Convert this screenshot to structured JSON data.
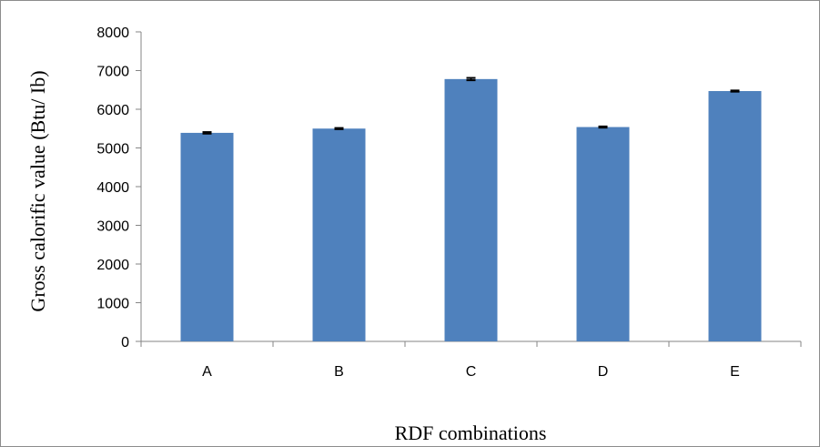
{
  "chart_data": {
    "type": "bar",
    "categories": [
      "A",
      "B",
      "C",
      "D",
      "E"
    ],
    "values": [
      5390,
      5500,
      6780,
      5540,
      6470
    ],
    "errors": [
      20,
      15,
      30,
      15,
      15
    ],
    "title": "",
    "xlabel": "RDF combinations",
    "ylabel": "Gross calorific value (Btu/ Ib)",
    "ylim": [
      0,
      8000
    ],
    "yticks": [
      "0",
      "1000",
      "2000",
      "3000",
      "4000",
      "5000",
      "6000",
      "7000",
      "8000"
    ],
    "grid": false,
    "legend": "none",
    "bar_color": "#4f81bd"
  }
}
